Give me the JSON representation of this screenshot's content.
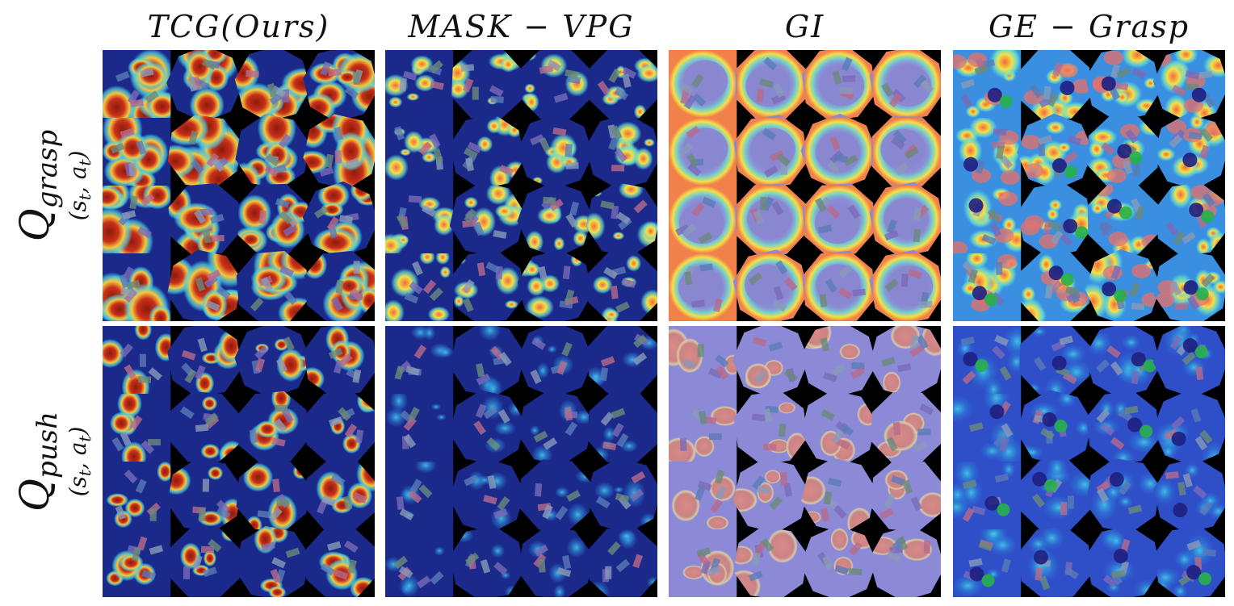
{
  "columns": [
    {
      "title": "TCG(Ours)",
      "theme": "tcg"
    },
    {
      "title": "MASK − VPG",
      "theme": "mask"
    },
    {
      "title": "GI",
      "theme": "gi"
    },
    {
      "title": "GE − Grasp",
      "theme": "ge"
    }
  ],
  "rows": [
    {
      "title": "Q",
      "subscript": "grasp",
      "args": "(s",
      "args_sub": "t",
      "args_tail": ", a",
      "args_sub2": "t",
      "args_end": ")"
    },
    {
      "title": "Q",
      "subscript": "push",
      "args": "(s",
      "args_sub": "t",
      "args_tail": ", a",
      "args_sub2": "t",
      "args_end": ")"
    }
  ],
  "grid": {
    "tile_rows": 4,
    "tile_cols": 4
  },
  "colors": {
    "background_black": "#000000",
    "jet_low": "#1b2a8a",
    "jet_mid": "#38c6e8",
    "jet_high_yellow": "#f2e04a",
    "jet_high": "#a8200f",
    "gi_base": "#8c8ad6",
    "ge_base": "#2f4fc9"
  }
}
